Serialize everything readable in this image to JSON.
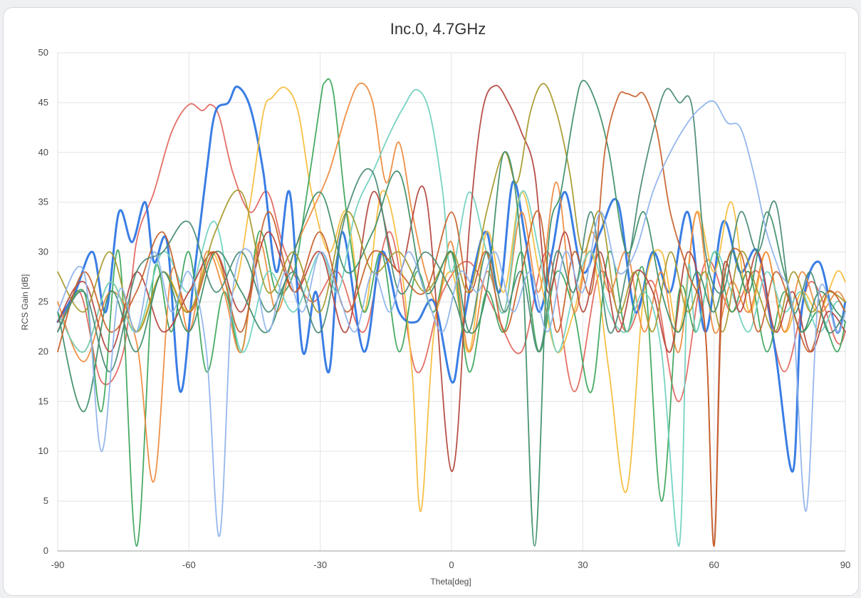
{
  "chart_data": {
    "type": "line",
    "title": "Inc.0, 4.7GHz",
    "xlabel": "Theta[deg]",
    "ylabel": "RCS Gain [dB]",
    "xlim": [
      -90,
      90
    ],
    "ylim": [
      0,
      50
    ],
    "xticks": [
      "-90",
      "-60",
      "-30",
      "0",
      "30",
      "60",
      "90"
    ],
    "yticks": [
      "0",
      "5",
      "10",
      "15",
      "20",
      "25",
      "30",
      "35",
      "40",
      "45",
      "50"
    ],
    "grid": true,
    "legend": "none",
    "series": [
      {
        "color": "#e2675e",
        "peak_x": -58,
        "peak_y": 44.8,
        "x": [
          -90,
          -85,
          -80,
          -75,
          -72,
          -68,
          -64,
          -60,
          -57,
          -55,
          -53,
          -50,
          -46,
          -42,
          -38,
          -32,
          -26,
          -20,
          -14,
          -8,
          -2,
          4,
          10,
          16,
          22,
          28,
          34,
          40,
          46,
          52,
          58,
          64,
          70,
          76,
          82,
          88,
          90
        ],
        "y": [
          22,
          26,
          17,
          20,
          31,
          36,
          42,
          44.8,
          44.2,
          44.8,
          43.5,
          38,
          34,
          36,
          30,
          25,
          28,
          22,
          32,
          18,
          26,
          29,
          24,
          20,
          30,
          16,
          28,
          22,
          27,
          15,
          29,
          24,
          28,
          18,
          27,
          21,
          22
        ]
      },
      {
        "color": "#2f77e3",
        "peak_x": -49,
        "peak_y": 46.6,
        "x": [
          -90,
          -86,
          -82,
          -79,
          -76,
          -73,
          -70,
          -68,
          -65,
          -62,
          -59,
          -56,
          -54,
          -51,
          -49,
          -46,
          -43,
          -40,
          -37,
          -34,
          -31,
          -28,
          -25,
          -20,
          -16,
          -12,
          -8,
          -4,
          0,
          2,
          5,
          8,
          11,
          14,
          17,
          20,
          23,
          26,
          30,
          34,
          38,
          42,
          46,
          50,
          54,
          58,
          62,
          66,
          70,
          74,
          78,
          80,
          84,
          88,
          90
        ],
        "y": [
          23,
          26,
          30,
          24,
          34,
          31,
          35,
          29,
          31,
          16,
          27,
          38,
          44,
          45,
          46.6,
          44.5,
          38,
          28,
          36,
          20,
          26,
          18,
          32,
          20,
          30,
          24,
          23,
          25,
          17,
          21,
          28,
          32,
          26,
          37,
          31,
          24,
          30,
          36,
          28,
          32,
          35,
          24,
          30,
          26,
          34,
          22,
          33,
          28,
          30,
          20,
          8,
          24,
          29,
          22,
          25
        ]
      },
      {
        "color": "#f5bd3c",
        "peak_x": -38,
        "peak_y": 46.5,
        "x": [
          -90,
          -84,
          -78,
          -72,
          -66,
          -60,
          -55,
          -50,
          -46,
          -43,
          -41,
          -38,
          -35,
          -32,
          -28,
          -24,
          -20,
          -16,
          -12,
          -9,
          -7,
          -4,
          0,
          4,
          8,
          12,
          16,
          20,
          24,
          28,
          32,
          36,
          40,
          44,
          48,
          52,
          56,
          60,
          64,
          68,
          72,
          76,
          80,
          84,
          88,
          90
        ],
        "y": [
          24,
          20,
          27,
          22,
          28,
          24,
          30,
          26,
          35,
          44,
          45.5,
          46.5,
          44,
          36,
          30,
          34,
          24,
          36,
          30,
          18,
          4,
          22,
          28,
          20,
          32,
          26,
          36,
          28,
          20,
          24,
          30,
          18,
          6,
          26,
          30,
          22,
          34,
          28,
          35,
          24,
          30,
          22,
          26,
          24,
          28,
          27
        ]
      },
      {
        "color": "#3da55c",
        "peak_x": -29,
        "peak_y": 47,
        "x": [
          -90,
          -84,
          -80,
          -76,
          -72,
          -68,
          -64,
          -60,
          -56,
          -52,
          -48,
          -44,
          -40,
          -36,
          -33,
          -30,
          -29,
          -27,
          -24,
          -20,
          -16,
          -12,
          -8,
          -4,
          0,
          4,
          8,
          12,
          16,
          20,
          24,
          28,
          32,
          36,
          40,
          44,
          48,
          52,
          56,
          60,
          64,
          68,
          72,
          76,
          80,
          84,
          88,
          90
        ],
        "y": [
          22,
          26,
          14,
          30,
          0.5,
          28,
          22,
          30,
          18,
          26,
          20,
          32,
          26,
          28,
          36,
          45,
          47,
          46,
          34,
          24,
          30,
          20,
          28,
          24,
          30,
          18,
          26,
          22,
          30,
          20,
          28,
          24,
          16,
          30,
          22,
          28,
          5,
          26,
          22,
          30,
          24,
          28,
          20,
          26,
          22,
          24,
          20,
          23
        ]
      },
      {
        "color": "#ee8a3d",
        "peak_x": -20,
        "peak_y": 46.9,
        "x": [
          -90,
          -84,
          -78,
          -72,
          -68,
          -64,
          -60,
          -56,
          -52,
          -48,
          -44,
          -40,
          -36,
          -32,
          -28,
          -24,
          -21,
          -18,
          -15,
          -12,
          -9,
          -6,
          -3,
          0,
          4,
          8,
          12,
          16,
          20,
          24,
          28,
          32,
          36,
          40,
          44,
          48,
          52,
          56,
          60,
          64,
          68,
          72,
          76,
          80,
          84,
          88,
          90
        ],
        "y": [
          25,
          19,
          26,
          21,
          7,
          28,
          22,
          30,
          26,
          20,
          31,
          24,
          30,
          34,
          38,
          44,
          46.9,
          45,
          37,
          41,
          34,
          28,
          25,
          31,
          20,
          28,
          24,
          34,
          26,
          37,
          24,
          32,
          26,
          30,
          22,
          28,
          20,
          34,
          22,
          27,
          24,
          30,
          22,
          28,
          24,
          26,
          25
        ]
      },
      {
        "color": "#70d1c0",
        "peak_x": -8,
        "peak_y": 46.3,
        "x": [
          -90,
          -84,
          -78,
          -72,
          -66,
          -60,
          -54,
          -48,
          -42,
          -36,
          -30,
          -26,
          -22,
          -18,
          -14,
          -11,
          -8,
          -5,
          -2,
          0,
          4,
          8,
          12,
          16,
          20,
          24,
          28,
          32,
          36,
          40,
          44,
          48,
          52,
          54,
          56,
          60,
          64,
          68,
          72,
          76,
          80,
          84,
          88,
          90
        ],
        "y": [
          24,
          20,
          27,
          22,
          30,
          26,
          33,
          20,
          28,
          24,
          30,
          26,
          34,
          38,
          42,
          44.5,
          46.3,
          44,
          36,
          28,
          36,
          30,
          24,
          36,
          30,
          20,
          26,
          30,
          24,
          22,
          26,
          20,
          0.5,
          28,
          22,
          30,
          26,
          22,
          28,
          24,
          26,
          22,
          25,
          24
        ]
      },
      {
        "color": "#b3473e",
        "peak_x": 10,
        "peak_y": 46.7,
        "x": [
          -90,
          -84,
          -78,
          -72,
          -66,
          -60,
          -54,
          -48,
          -42,
          -36,
          -30,
          -24,
          -18,
          -12,
          -6,
          0,
          4,
          7,
          10,
          13,
          16,
          19,
          22,
          26,
          30,
          34,
          38,
          42,
          46,
          50,
          54,
          58,
          60,
          62,
          66,
          70,
          74,
          78,
          82,
          86,
          90
        ],
        "y": [
          23,
          27,
          20,
          28,
          22,
          26,
          30,
          24,
          32,
          26,
          30,
          22,
          36,
          28,
          36,
          8,
          32,
          44,
          46.7,
          45,
          42,
          38,
          26,
          32,
          24,
          30,
          22,
          28,
          26,
          20,
          30,
          22,
          0.5,
          28,
          24,
          30,
          22,
          26,
          20,
          24,
          22
        ]
      },
      {
        "color": "#a89a2e",
        "peak_x": 21,
        "peak_y": 46.9,
        "x": [
          -90,
          -84,
          -78,
          -72,
          -66,
          -60,
          -54,
          -48,
          -42,
          -36,
          -30,
          -24,
          -18,
          -12,
          -6,
          0,
          4,
          8,
          12,
          15,
          18,
          21,
          24,
          27,
          30,
          34,
          38,
          42,
          46,
          50,
          54,
          58,
          62,
          66,
          70,
          74,
          78,
          82,
          86,
          90
        ],
        "y": [
          28,
          24,
          30,
          22,
          28,
          24,
          32,
          36,
          26,
          30,
          24,
          34,
          28,
          30,
          26,
          30,
          26,
          34,
          40,
          37,
          44,
          46.9,
          44,
          38,
          30,
          34,
          24,
          28,
          22,
          30,
          24,
          28,
          22,
          30,
          26,
          22,
          28,
          24,
          26,
          25
        ]
      },
      {
        "color": "#3e8f6a",
        "peak_x": 30,
        "peak_y": 47.2,
        "x": [
          -90,
          -84,
          -78,
          -72,
          -66,
          -60,
          -54,
          -48,
          -42,
          -36,
          -30,
          -24,
          -18,
          -12,
          -6,
          0,
          4,
          8,
          12,
          16,
          19,
          22,
          25,
          28,
          30,
          33,
          36,
          40,
          44,
          48,
          52,
          56,
          60,
          64,
          68,
          72,
          76,
          80,
          84,
          88,
          90
        ],
        "y": [
          24,
          14,
          26,
          20,
          28,
          22,
          30,
          26,
          22,
          30,
          36,
          28,
          32,
          38,
          26,
          30,
          22,
          26,
          40,
          30,
          0.5,
          30,
          36,
          44,
          47.2,
          45,
          40,
          30,
          34,
          26,
          22,
          28,
          24,
          30,
          26,
          34,
          28,
          22,
          26,
          24,
          23
        ]
      },
      {
        "color": "#c8622c",
        "peak_x": 40,
        "peak_y": 45.9,
        "x": [
          -90,
          -84,
          -78,
          -72,
          -66,
          -60,
          -54,
          -48,
          -42,
          -36,
          -30,
          -24,
          -18,
          -12,
          -6,
          0,
          4,
          8,
          12,
          16,
          20,
          24,
          28,
          32,
          35,
          38,
          40,
          42,
          44,
          47,
          50,
          54,
          58,
          60,
          62,
          66,
          70,
          74,
          78,
          82,
          86,
          90
        ],
        "y": [
          20,
          28,
          22,
          26,
          32,
          24,
          30,
          22,
          34,
          26,
          32,
          24,
          30,
          28,
          26,
          34,
          26,
          30,
          22,
          28,
          34,
          22,
          30,
          26,
          40,
          45.5,
          45.9,
          45.6,
          45.8,
          42,
          34,
          28,
          22,
          0.5,
          26,
          30,
          22,
          28,
          24,
          20,
          26,
          24
        ]
      },
      {
        "color": "#4b8b77",
        "peak_x": 49,
        "peak_y": 46.3,
        "x": [
          -90,
          -84,
          -78,
          -72,
          -66,
          -60,
          -54,
          -48,
          -42,
          -36,
          -30,
          -24,
          -18,
          -12,
          -6,
          0,
          4,
          8,
          12,
          16,
          20,
          24,
          28,
          32,
          36,
          40,
          43,
          46,
          49,
          52,
          55,
          58,
          62,
          66,
          70,
          74,
          78,
          82,
          86,
          90
        ],
        "y": [
          22,
          26,
          18,
          28,
          30,
          33,
          26,
          30,
          24,
          28,
          22,
          34,
          38,
          26,
          30,
          26,
          22,
          30,
          24,
          28,
          20,
          30,
          26,
          34,
          22,
          28,
          36,
          42,
          46.3,
          45,
          44.5,
          30,
          26,
          34,
          30,
          35,
          24,
          28,
          22,
          24
        ]
      },
      {
        "color": "#8fb3eb",
        "peak_x": 60,
        "peak_y": 45.1,
        "x": [
          -90,
          -84,
          -80,
          -76,
          -72,
          -68,
          -64,
          -60,
          -56,
          -53,
          -50,
          -46,
          -42,
          -38,
          -34,
          -30,
          -26,
          -22,
          -18,
          -14,
          -10,
          -6,
          -2,
          2,
          6,
          10,
          14,
          18,
          22,
          26,
          30,
          34,
          38,
          42,
          46,
          50,
          54,
          57,
          60,
          63,
          66,
          69,
          72,
          75,
          78,
          81,
          84,
          88,
          90
        ],
        "y": [
          24,
          28,
          10,
          26,
          22,
          30,
          24,
          28,
          20,
          1.5,
          26,
          30,
          22,
          28,
          24,
          30,
          26,
          22,
          28,
          24,
          30,
          26,
          22,
          28,
          26,
          30,
          24,
          28,
          22,
          30,
          26,
          34,
          28,
          30,
          36,
          40,
          43,
          44.5,
          45.1,
          43,
          42.5,
          38,
          32,
          28,
          24,
          4,
          26,
          22,
          24
        ]
      }
    ]
  }
}
